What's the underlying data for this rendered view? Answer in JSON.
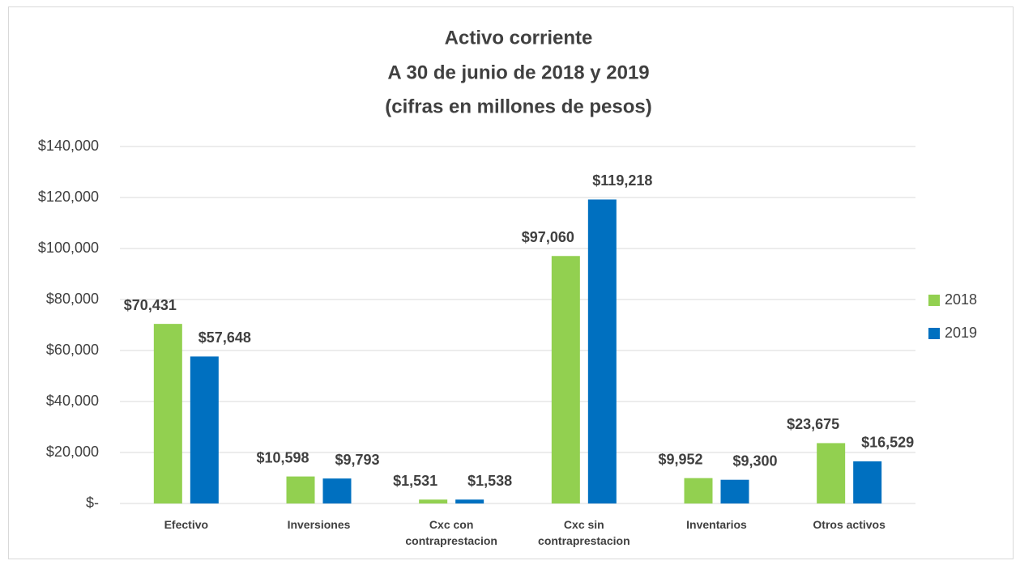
{
  "chart_data": {
    "type": "bar",
    "title": "Activo corriente",
    "subtitle": [
      "A 30 de junio de 2018 y 2019",
      "(cifras en millones de pesos)"
    ],
    "categories": [
      "Efectivo",
      "Inversiones",
      "Cxc con contraprestacion",
      "Cxc sin contraprestacion",
      "Inventarios",
      "Otros activos"
    ],
    "series": [
      {
        "name": "2018",
        "color": "#92d050",
        "values": [
          70431,
          10598,
          1531,
          97060,
          9952,
          23675
        ],
        "value_labels": [
          "$70,431",
          "$10,598",
          "$1,531",
          "$97,060",
          "$9,952",
          "$23,675"
        ]
      },
      {
        "name": "2019",
        "color": "#0070c0",
        "values": [
          57648,
          9793,
          1538,
          119218,
          9300,
          16529
        ],
        "value_labels": [
          "$57,648",
          "$9,793",
          "$1,538",
          "$119,218",
          "$9,300",
          "$16,529"
        ]
      }
    ],
    "ylim": [
      0,
      140000
    ],
    "yticks": [
      {
        "value": 0,
        "label": "$-"
      },
      {
        "value": 20000,
        "label": "$20,000"
      },
      {
        "value": 40000,
        "label": "$40,000"
      },
      {
        "value": 60000,
        "label": "$60,000"
      },
      {
        "value": 80000,
        "label": "$80,000"
      },
      {
        "value": 100000,
        "label": "$100,000"
      },
      {
        "value": 120000,
        "label": "$120,000"
      },
      {
        "value": 140000,
        "label": "$140,000"
      }
    ],
    "grid": true,
    "legend": "right"
  }
}
